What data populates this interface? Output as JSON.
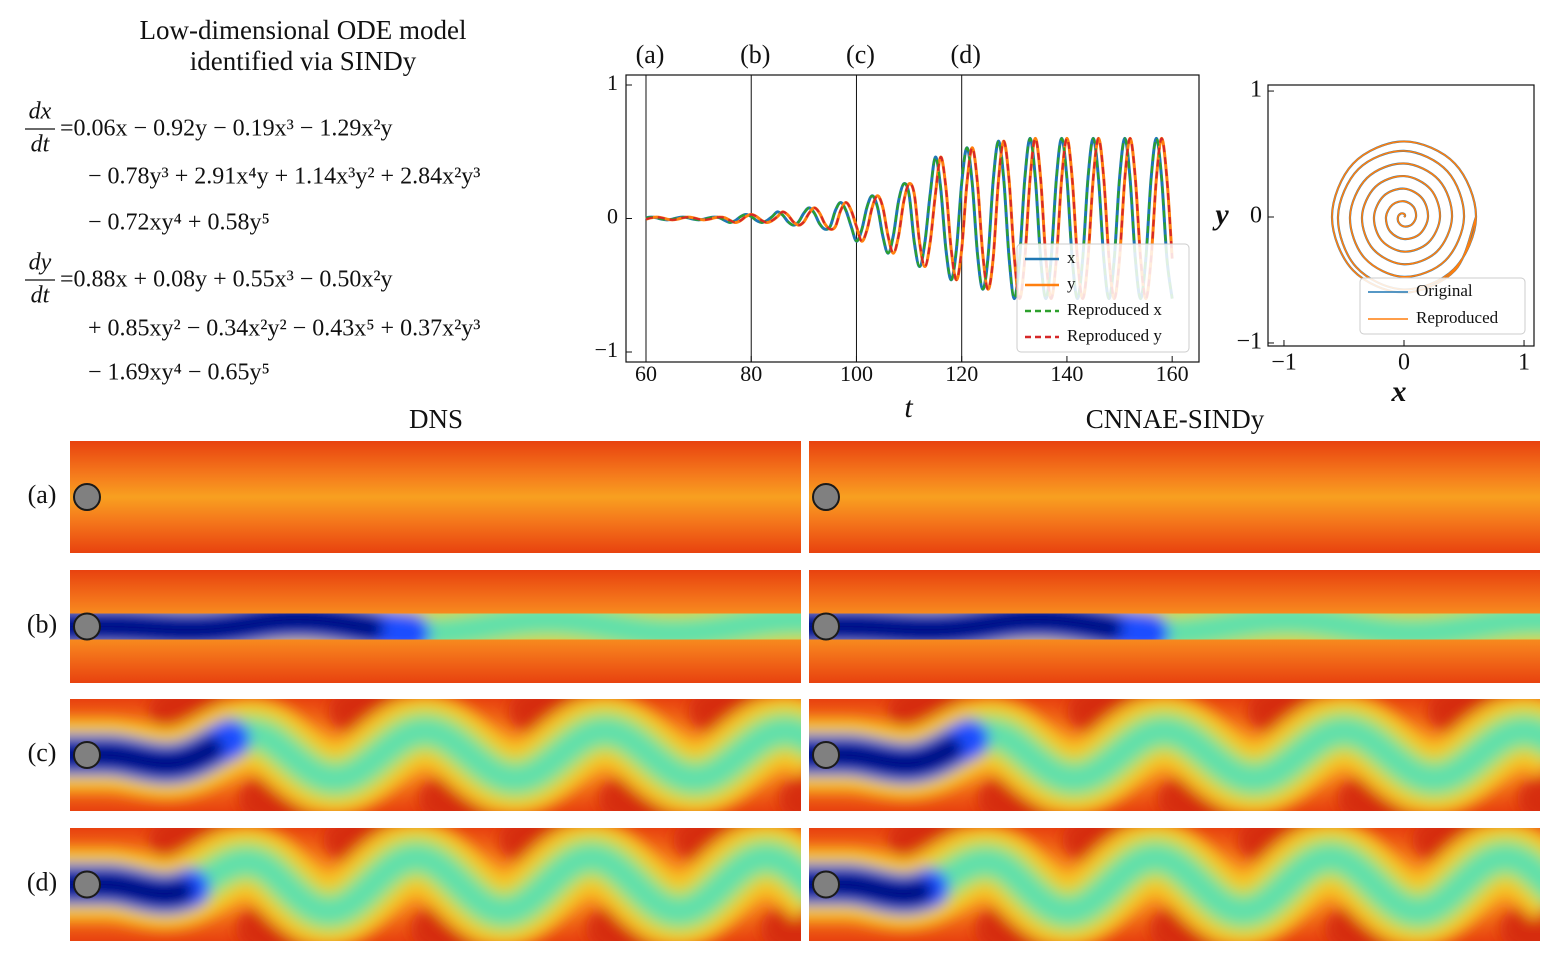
{
  "equations": {
    "title": [
      "Low-dimensional ODE model",
      "identified via SINDy"
    ],
    "dx": {
      "numerator": "dx",
      "denominator": "dt",
      "lines": [
        "=0.06x − 0.92y − 0.19x³ − 1.29x²y",
        "− 0.78y³ + 2.91x⁴y + 1.14x³y² + 2.84x²y³",
        "− 0.72xy⁴ + 0.58y⁵"
      ]
    },
    "dy": {
      "numerator": "dy",
      "denominator": "dt",
      "lines": [
        "=0.88x + 0.08y + 0.55x³ − 0.50x²y",
        "+ 0.85xy² − 0.34x²y² − 0.43x⁵ + 0.37x²y³",
        "− 1.69xy⁴ − 0.65y⁵"
      ]
    }
  },
  "chart_data": [
    {
      "type": "line",
      "xlabel": "t",
      "xlim": [
        56.2,
        165.1
      ],
      "ylim": [
        -1.075,
        1.075
      ],
      "xticks": [
        60,
        80,
        100,
        120,
        140,
        160
      ],
      "yticks": [
        {
          "value": -1,
          "label": "−1"
        },
        0,
        1
      ],
      "legend": "lower right",
      "vlines": [
        {
          "x": 60,
          "label": "(a)"
        },
        {
          "x": 80,
          "label": "(b)"
        },
        {
          "x": 100,
          "label": "(c)"
        },
        {
          "x": 120,
          "label": "(d)"
        }
      ],
      "x": [
        60,
        61,
        62,
        63,
        64,
        65,
        66,
        67,
        68,
        69,
        70,
        71,
        72,
        73,
        74,
        75,
        76,
        77,
        78,
        79,
        80,
        81,
        82,
        83,
        84,
        85,
        86,
        87,
        88,
        89,
        90,
        91,
        92,
        93,
        94,
        95,
        96,
        97,
        98,
        99,
        100,
        101,
        102,
        103,
        104,
        105,
        106,
        107,
        108,
        109,
        110,
        111,
        112,
        113,
        114,
        115,
        116,
        117,
        118,
        119,
        120,
        121,
        122,
        123,
        124,
        125,
        126,
        127,
        128,
        129,
        130,
        131,
        132,
        133,
        134,
        135,
        136,
        137,
        138,
        139,
        140,
        141,
        142,
        143,
        144,
        145,
        146,
        147,
        148,
        149,
        150,
        151,
        152,
        153,
        154,
        155,
        156,
        157,
        158,
        159,
        160
      ],
      "series": [
        {
          "name": "x",
          "color": "#1f77b4",
          "linestyle": "solid",
          "values": [
            0.005,
            0.01,
            0.005,
            -0.005,
            -0.01,
            -0.005,
            0.005,
            0.01,
            0.005,
            -0.005,
            -0.01,
            -0.005,
            0.005,
            0.01,
            0.005,
            -0.015,
            -0.03,
            -0.015,
            0.015,
            0.03,
            0.015,
            -0.015,
            -0.03,
            -0.015,
            0.015,
            0.05,
            0.025,
            -0.025,
            -0.05,
            -0.025,
            0.04,
            0.08,
            0.04,
            -0.04,
            -0.08,
            -0.06,
            0.06,
            0.12,
            0.06,
            -0.06,
            -0.17,
            -0.085,
            0.085,
            0.17,
            0.085,
            -0.13,
            -0.26,
            -0.13,
            0.13,
            0.26,
            0.18,
            -0.18,
            -0.36,
            -0.18,
            0.18,
            0.46,
            0.23,
            -0.23,
            -0.46,
            -0.23,
            0.265,
            0.53,
            0.265,
            -0.265,
            -0.53,
            -0.29,
            0.29,
            0.58,
            0.29,
            -0.29,
            -0.6,
            -0.3,
            0.3,
            0.6,
            0.3,
            -0.3,
            -0.6,
            -0.3,
            0.3,
            0.6,
            0.3,
            -0.3,
            -0.6,
            -0.3,
            0.3,
            0.6,
            0.3,
            -0.3,
            -0.6,
            -0.3,
            0.3,
            0.6,
            0.3,
            -0.3,
            -0.6,
            -0.3,
            0.3,
            0.6,
            0.3,
            -0.3,
            -0.6
          ]
        },
        {
          "name": "y",
          "color": "#ff7f0e",
          "linestyle": "solid",
          "values": [
            -0.005,
            0.005,
            0.01,
            0.005,
            -0.005,
            -0.01,
            -0.005,
            0.005,
            0.01,
            0.005,
            -0.005,
            -0.01,
            -0.005,
            0.005,
            0.01,
            0.005,
            -0.015,
            -0.03,
            -0.015,
            0.015,
            0.03,
            0.015,
            -0.015,
            -0.03,
            -0.015,
            0.015,
            0.05,
            0.025,
            -0.025,
            -0.05,
            -0.025,
            0.04,
            0.08,
            0.04,
            -0.04,
            -0.08,
            -0.06,
            0.06,
            0.12,
            0.06,
            -0.06,
            -0.17,
            -0.085,
            0.085,
            0.17,
            0.085,
            -0.13,
            -0.26,
            -0.13,
            0.13,
            0.26,
            0.18,
            -0.18,
            -0.36,
            -0.18,
            0.18,
            0.46,
            0.23,
            -0.23,
            -0.46,
            -0.23,
            0.265,
            0.53,
            0.265,
            -0.265,
            -0.53,
            -0.29,
            0.29,
            0.58,
            0.29,
            -0.29,
            -0.6,
            -0.3,
            0.3,
            0.6,
            0.3,
            -0.3,
            -0.6,
            -0.3,
            0.3,
            0.6,
            0.3,
            -0.3,
            -0.6,
            -0.3,
            0.3,
            0.6,
            0.3,
            -0.3,
            -0.6,
            -0.3,
            0.3,
            0.6,
            0.3,
            -0.3,
            -0.6,
            -0.3,
            0.3,
            0.6,
            0.3,
            -0.3
          ]
        },
        {
          "name": "Reproduced x",
          "color": "#2ca02c",
          "linestyle": "dashed",
          "values": [
            0.005,
            0.01,
            0.005,
            -0.005,
            -0.01,
            -0.005,
            0.005,
            0.01,
            0.005,
            -0.005,
            -0.01,
            -0.005,
            0.005,
            0.01,
            0.005,
            -0.015,
            -0.03,
            -0.015,
            0.015,
            0.03,
            0.015,
            -0.015,
            -0.03,
            -0.015,
            0.015,
            0.05,
            0.025,
            -0.025,
            -0.05,
            -0.025,
            0.04,
            0.08,
            0.04,
            -0.04,
            -0.08,
            -0.06,
            0.06,
            0.12,
            0.06,
            -0.06,
            -0.17,
            -0.085,
            0.085,
            0.17,
            0.085,
            -0.13,
            -0.26,
            -0.13,
            0.13,
            0.26,
            0.18,
            -0.18,
            -0.36,
            -0.18,
            0.18,
            0.46,
            0.23,
            -0.23,
            -0.46,
            -0.23,
            0.265,
            0.53,
            0.265,
            -0.265,
            -0.53,
            -0.29,
            0.29,
            0.58,
            0.29,
            -0.29,
            -0.6,
            -0.3,
            0.3,
            0.6,
            0.3,
            -0.3,
            -0.6,
            -0.3,
            0.3,
            0.6,
            0.3,
            -0.3,
            -0.6,
            -0.3,
            0.3,
            0.6,
            0.3,
            -0.3,
            -0.6,
            -0.3,
            0.3,
            0.6,
            0.3,
            -0.3,
            -0.6,
            -0.3,
            0.3,
            0.6,
            0.3,
            -0.3,
            -0.6
          ]
        },
        {
          "name": "Reproduced y",
          "color": "#d62728",
          "linestyle": "dashed",
          "values": [
            -0.005,
            0.005,
            0.01,
            0.005,
            -0.005,
            -0.01,
            -0.005,
            0.005,
            0.01,
            0.005,
            -0.005,
            -0.01,
            -0.005,
            0.005,
            0.01,
            0.005,
            -0.015,
            -0.03,
            -0.015,
            0.015,
            0.03,
            0.015,
            -0.015,
            -0.03,
            -0.015,
            0.015,
            0.05,
            0.025,
            -0.025,
            -0.05,
            -0.025,
            0.04,
            0.08,
            0.04,
            -0.04,
            -0.08,
            -0.06,
            0.06,
            0.12,
            0.06,
            -0.06,
            -0.17,
            -0.085,
            0.085,
            0.17,
            0.085,
            -0.13,
            -0.26,
            -0.13,
            0.13,
            0.26,
            0.18,
            -0.18,
            -0.36,
            -0.18,
            0.18,
            0.46,
            0.23,
            -0.23,
            -0.46,
            -0.23,
            0.265,
            0.53,
            0.265,
            -0.265,
            -0.53,
            -0.29,
            0.29,
            0.58,
            0.29,
            -0.29,
            -0.6,
            -0.3,
            0.3,
            0.6,
            0.3,
            -0.3,
            -0.6,
            -0.3,
            0.3,
            0.6,
            0.3,
            -0.3,
            -0.6,
            -0.3,
            0.3,
            0.6,
            0.3,
            -0.3,
            -0.6,
            -0.3,
            0.3,
            0.6,
            0.3,
            -0.3,
            -0.6,
            -0.3,
            0.3,
            0.6,
            0.3,
            -0.3
          ]
        }
      ]
    },
    {
      "type": "phase",
      "xlabel": "x",
      "ylabel": "y",
      "xlim": [
        -1.133,
        1.083
      ],
      "ylim": [
        -1.024,
        1.048
      ],
      "xticks": [
        {
          "value": -1,
          "label": "−1"
        },
        0,
        1
      ],
      "yticks": [
        {
          "value": -1,
          "label": "−1"
        },
        0,
        1
      ],
      "legend": "lower right",
      "series": [
        {
          "name": "Original",
          "color": "#1f77b4",
          "x": [
            0,
            0.009,
            0,
            -0.027,
            -0.05,
            -0.044,
            0,
            0.062,
            0.1,
            0.08,
            0,
            -0.097,
            -0.15,
            -0.115,
            0,
            0.133,
            0.2,
            0.15,
            0,
            -0.168,
            -0.25,
            -0.186,
            0,
            0.203,
            0.3,
            0.221,
            0,
            -0.239,
            -0.35,
            -0.256,
            0,
            0.274,
            0.4,
            0.292,
            0,
            -0.309,
            -0.45,
            -0.327,
            0,
            0.345,
            0.5,
            0.362,
            0,
            -0.38,
            -0.55,
            -0.398,
            0,
            0.415,
            0.6,
            0.424,
            0,
            -0.424,
            -0.6,
            -0.424,
            0,
            0.424,
            0.6
          ],
          "y": [
            0,
            0.009,
            0.025,
            0.027,
            0,
            -0.044,
            -0.075,
            -0.062,
            0,
            0.08,
            0.125,
            0.097,
            0,
            -0.115,
            -0.175,
            -0.133,
            0,
            0.15,
            0.225,
            0.168,
            0,
            -0.186,
            -0.275,
            -0.203,
            0,
            0.221,
            0.325,
            0.239,
            0,
            -0.256,
            -0.375,
            -0.274,
            0,
            0.292,
            0.425,
            0.309,
            0,
            -0.327,
            -0.475,
            -0.345,
            0,
            0.362,
            0.525,
            0.38,
            0,
            -0.398,
            -0.575,
            -0.415,
            0,
            0.424,
            0.6,
            0.424,
            0,
            -0.424,
            -0.6,
            -0.424,
            0
          ]
        },
        {
          "name": "Reproduced",
          "color": "#ff7f0e",
          "x": [
            0,
            0.009,
            0,
            -0.027,
            -0.05,
            -0.044,
            0,
            0.062,
            0.1,
            0.08,
            0,
            -0.097,
            -0.15,
            -0.115,
            0,
            0.133,
            0.2,
            0.15,
            0,
            -0.168,
            -0.25,
            -0.186,
            0,
            0.203,
            0.3,
            0.221,
            0,
            -0.239,
            -0.35,
            -0.256,
            0,
            0.274,
            0.4,
            0.292,
            0,
            -0.309,
            -0.45,
            -0.327,
            0,
            0.345,
            0.5,
            0.362,
            0,
            -0.38,
            -0.55,
            -0.398,
            0,
            0.415,
            0.6,
            0.424,
            0,
            -0.424,
            -0.6,
            -0.424,
            0,
            0.424,
            0.6
          ],
          "y": [
            0,
            0.009,
            0.025,
            0.027,
            0,
            -0.044,
            -0.075,
            -0.062,
            0,
            0.08,
            0.125,
            0.097,
            0,
            -0.115,
            -0.175,
            -0.133,
            0,
            0.15,
            0.225,
            0.168,
            0,
            -0.186,
            -0.275,
            -0.203,
            0,
            0.221,
            0.325,
            0.239,
            0,
            -0.256,
            -0.375,
            -0.274,
            0,
            0.292,
            0.425,
            0.309,
            0,
            -0.327,
            -0.475,
            -0.345,
            0,
            0.362,
            0.525,
            0.38,
            0,
            -0.398,
            -0.575,
            -0.415,
            0,
            0.424,
            0.6,
            0.424,
            0,
            -0.424,
            -0.6,
            -0.424,
            0
          ]
        }
      ]
    }
  ],
  "fields": {
    "columns": [
      "DNS",
      "CNNAE-SINDy"
    ],
    "rows": [
      "(a)",
      "(b)",
      "(c)",
      "(d)"
    ]
  }
}
